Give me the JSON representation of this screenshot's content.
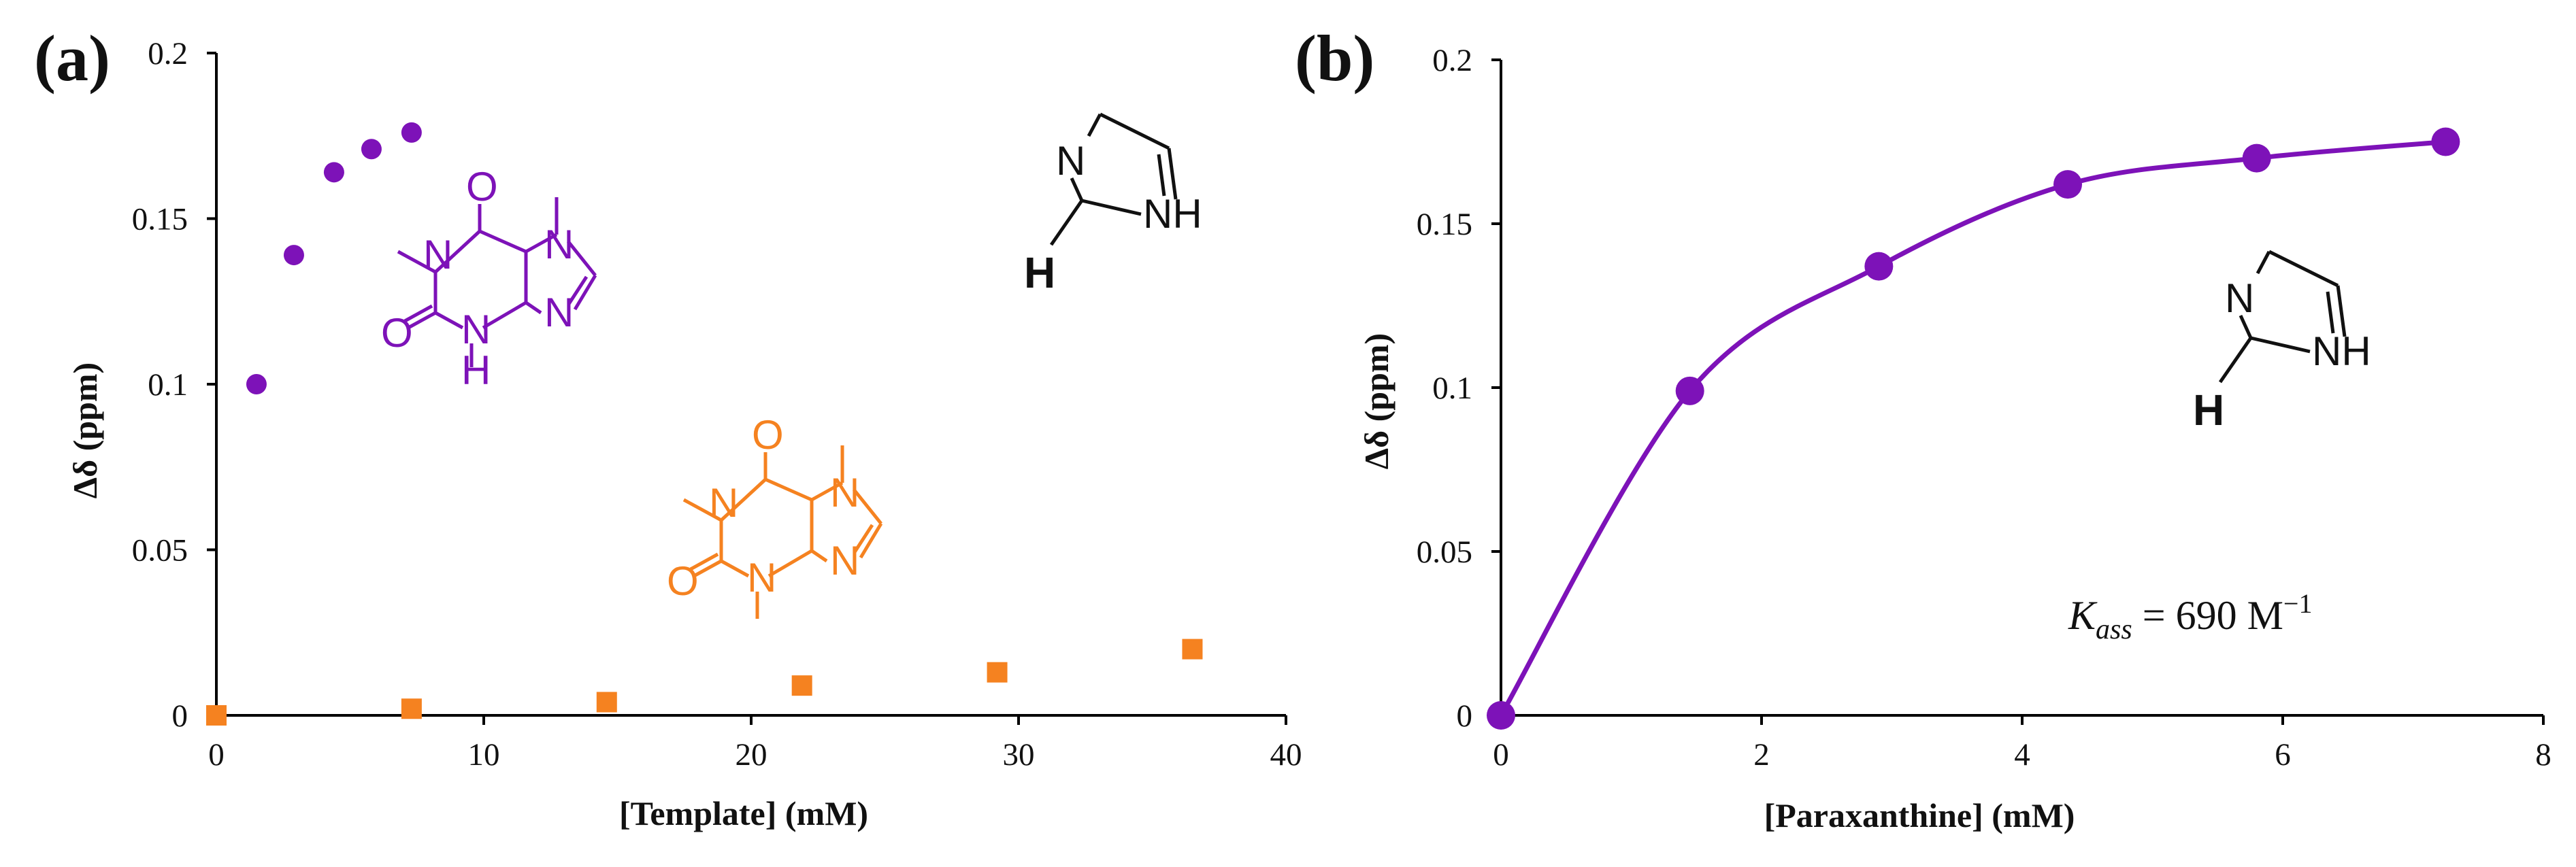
{
  "colors": {
    "paraxanthine": "#7d12b8",
    "caffeine": "#f58220",
    "axis": "#000000",
    "text": "#111111"
  },
  "chart_data": [
    {
      "panel": "(a)",
      "type": "scatter",
      "xlabel": "[Template] (mM)",
      "ylabel": "Δδ (ppm)",
      "xlim": [
        0,
        40
      ],
      "ylim": [
        0,
        0.2
      ],
      "xticks": [
        "0",
        "10",
        "20",
        "30",
        "40"
      ],
      "yticks": [
        "0",
        "0.05",
        "0.1",
        "0.15",
        "0.2"
      ],
      "grid": false,
      "series": [
        {
          "marker": "circle",
          "color": "#7d12b8",
          "x": [
            1.5,
            2.9,
            4.4,
            5.8,
            7.3
          ],
          "y": [
            0.1,
            0.139,
            0.164,
            0.171,
            0.176
          ]
        },
        {
          "marker": "square",
          "color": "#f58220",
          "x": [
            0,
            7.3,
            14.6,
            21.9,
            29.2,
            36.5
          ],
          "y": [
            0.0,
            0.002,
            0.004,
            0.009,
            0.013,
            0.02
          ]
        }
      ]
    },
    {
      "panel": "(b)",
      "type": "scatter",
      "xlabel": "[Paraxanthine] (mM)",
      "ylabel": "Δδ (ppm)",
      "xlim": [
        0,
        8
      ],
      "ylim": [
        0,
        0.2
      ],
      "xticks": [
        "0",
        "2",
        "4",
        "6",
        "8"
      ],
      "yticks": [
        "0",
        "0.05",
        "0.1",
        "0.15",
        "0.2"
      ],
      "grid": false,
      "series": [
        {
          "marker": "circle",
          "color": "#7d12b8",
          "x": [
            0,
            1.45,
            2.9,
            4.35,
            5.8,
            7.25
          ],
          "y": [
            0.0,
            0.099,
            0.137,
            0.162,
            0.17,
            0.175
          ]
        }
      ],
      "fit": {
        "color": "#7d12b8",
        "kass_symbol": "K",
        "kass_subscript": "ass",
        "kass_value": " = 690 M",
        "kass_unit_power": "−1"
      }
    }
  ],
  "structures": {
    "imidazole": {
      "n": "N",
      "nh": "NH",
      "h": "H"
    },
    "paraxanthine": {
      "o1": "O",
      "o2": "O",
      "n1": "N",
      "n3": "N",
      "n7": "N",
      "n9": "N",
      "h": "H"
    },
    "caffeine": {
      "o1": "O",
      "o2": "O",
      "n1": "N",
      "n3": "N",
      "n7": "N",
      "n9": "N"
    }
  }
}
